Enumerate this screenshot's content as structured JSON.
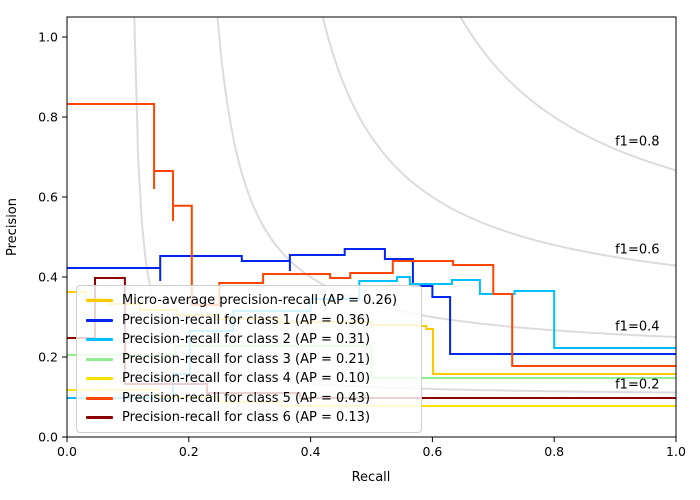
{
  "figure": {
    "background": "#ffffff"
  },
  "chart_data": {
    "type": "line",
    "subtype": "precision-recall-step-curves",
    "title": "",
    "xlabel": "Recall",
    "ylabel": "Precision",
    "xlim": [
      0.0,
      1.0
    ],
    "ylim": [
      0.0,
      1.05
    ],
    "grid": false,
    "x_ticks": [
      0.0,
      0.2,
      0.4,
      0.6,
      0.8,
      1.0
    ],
    "x_tick_labels": [
      "0.0",
      "0.2",
      "0.4",
      "0.6",
      "0.8",
      "1.0"
    ],
    "y_ticks": [
      0.0,
      0.2,
      0.4,
      0.6,
      0.8,
      1.0
    ],
    "y_tick_labels": [
      "0.0",
      "0.2",
      "0.4",
      "0.6",
      "0.8",
      "1.0"
    ],
    "legend_position": "lower left",
    "iso_f1": {
      "values": [
        0.2,
        0.4,
        0.6,
        0.8
      ],
      "labels": [
        "f1=0.2",
        "f1=0.4",
        "f1=0.6",
        "f1=0.8"
      ],
      "curve_color": "#dcdcdc",
      "label_color": "#000000",
      "label_x": 0.9
    },
    "series": [
      {
        "name": "micro-average",
        "label": "Micro-average precision-recall (AP = 0.26)",
        "ap": 0.26,
        "color": "#ffc800",
        "points": [
          [
            0,
            0.3625
          ],
          [
            0.03,
            0.345
          ],
          [
            0.07,
            0.3325
          ],
          [
            0.12,
            0.3175
          ],
          [
            0.18,
            0.305
          ],
          [
            0.25,
            0.295
          ],
          [
            0.35,
            0.2875
          ],
          [
            0.5,
            0.28
          ],
          [
            0.575,
            0.2775
          ],
          [
            0.59,
            0.27
          ],
          [
            0.601,
            0.1575
          ],
          [
            1.0,
            0.1575
          ]
        ]
      },
      {
        "name": "class-1",
        "label": "Precision-recall for class 1 (AP = 0.36)",
        "ap": 0.36,
        "color": "#0026f0",
        "points": [
          [
            0,
            0.4225
          ],
          [
            0.153,
            0.39
          ],
          [
            0.153,
            0.4525
          ],
          [
            0.287,
            0.44
          ],
          [
            0.366,
            0.415
          ],
          [
            0.366,
            0.455
          ],
          [
            0.456,
            0.47
          ],
          [
            0.522,
            0.445
          ],
          [
            0.568,
            0.3775
          ],
          [
            0.6,
            0.35
          ],
          [
            0.629,
            0.2075
          ],
          [
            1.0,
            0.2075
          ]
        ]
      },
      {
        "name": "class-2",
        "label": "Precision-recall for class 2 (AP = 0.31)",
        "ap": 0.31,
        "color": "#00bfff",
        "points": [
          [
            0,
            0.0975
          ],
          [
            0.174,
            0.1575
          ],
          [
            0.202,
            0.265
          ],
          [
            0.273,
            0.315
          ],
          [
            0.4,
            0.345
          ],
          [
            0.48,
            0.39
          ],
          [
            0.542,
            0.4
          ],
          [
            0.563,
            0.3825
          ],
          [
            0.632,
            0.3925
          ],
          [
            0.678,
            0.3575
          ],
          [
            0.735,
            0.365
          ],
          [
            0.8,
            0.2225
          ],
          [
            1.0,
            0.2225
          ]
        ]
      },
      {
        "name": "class-3",
        "label": "Precision-recall for class 3 (AP = 0.21)",
        "ap": 0.21,
        "color": "#90ee90",
        "points": [
          [
            0,
            0.205
          ],
          [
            0.178,
            0.2275
          ],
          [
            0.5,
            0.1475
          ],
          [
            1.0,
            0.1475
          ]
        ]
      },
      {
        "name": "class-4",
        "label": "Precision-recall for class 4 (AP = 0.10)",
        "ap": 0.1,
        "color": "#ffe100",
        "points": [
          [
            0,
            0.1175
          ],
          [
            0.15,
            0.1
          ],
          [
            0.25,
            0.0875
          ],
          [
            0.35,
            0.0775
          ],
          [
            1.0,
            0.0775
          ]
        ]
      },
      {
        "name": "class-5",
        "label": "Precision-recall for class 5 (AP = 0.43)",
        "ap": 0.43,
        "color": "#ff4500",
        "points": [
          [
            0,
            0.8325
          ],
          [
            0.143,
            0.62
          ],
          [
            0.143,
            0.665
          ],
          [
            0.174,
            0.54
          ],
          [
            0.174,
            0.578
          ],
          [
            0.205,
            0.33
          ],
          [
            0.25,
            0.385
          ],
          [
            0.322,
            0.4075
          ],
          [
            0.432,
            0.3975
          ],
          [
            0.465,
            0.41
          ],
          [
            0.535,
            0.44
          ],
          [
            0.634,
            0.43
          ],
          [
            0.7,
            0.3575
          ],
          [
            0.731,
            0.1775
          ],
          [
            1.0,
            0.1775
          ]
        ]
      },
      {
        "name": "class-6",
        "label": "Precision-recall for class 6 (AP = 0.13)",
        "ap": 0.13,
        "color": "#8b0000",
        "points": [
          [
            0,
            0.2475
          ],
          [
            0.046,
            0.3975
          ],
          [
            0.095,
            0.1325
          ],
          [
            0.23,
            0.11
          ],
          [
            0.383,
            0.0975
          ],
          [
            1.0,
            0.0975
          ]
        ]
      }
    ]
  }
}
